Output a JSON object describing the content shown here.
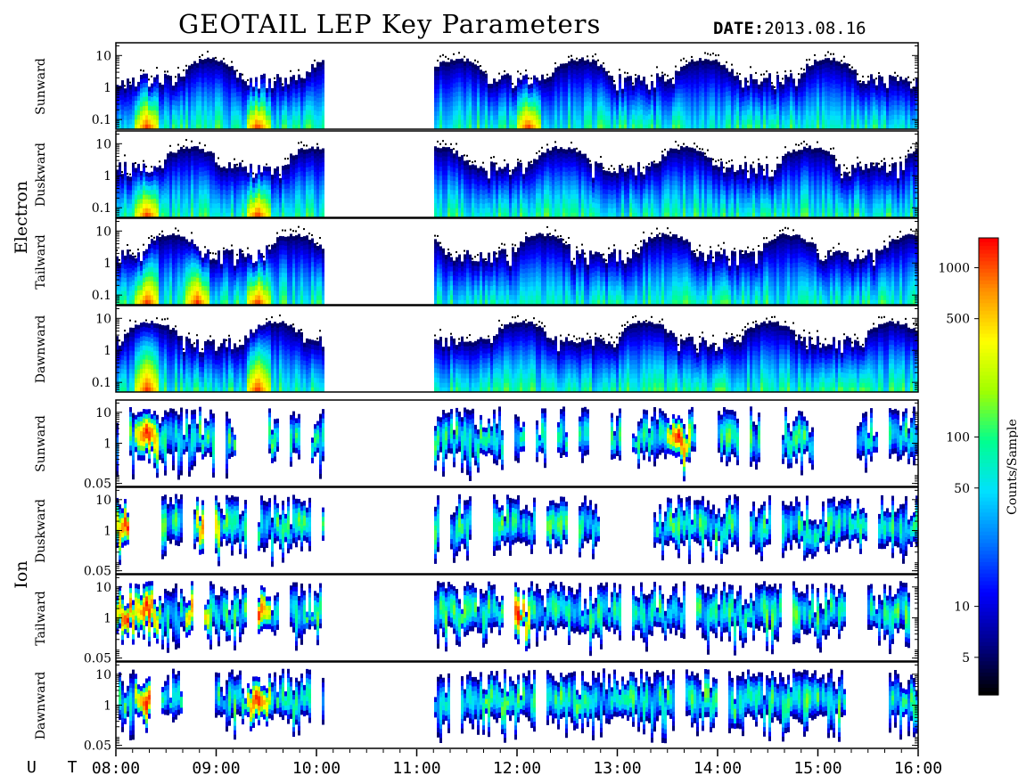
{
  "title": "GEOTAIL LEP Key Parameters",
  "date_label": "DATE:",
  "date_value": "2013.08.16",
  "time_label": "U T",
  "chart_data": {
    "type": "heatmap",
    "title": "GEOTAIL LEP Key Parameters",
    "date": "2013.08.16",
    "xlabel": "U T",
    "x_ticks": [
      "08:00",
      "09:00",
      "10:00",
      "11:00",
      "12:00",
      "13:00",
      "14:00",
      "15:00",
      "16:00"
    ],
    "x_range_hours": [
      8,
      16
    ],
    "data_gaps_hours": [
      [
        10.08,
        11.15
      ]
    ],
    "colorbar": {
      "label": "Counts/Sample",
      "scale": "log",
      "range": [
        3,
        1500
      ],
      "ticks": [
        5,
        10,
        50,
        100,
        500,
        1000
      ],
      "colors": [
        "#000000",
        "#00008b",
        "#0000ff",
        "#0078ff",
        "#00e0ff",
        "#00ff90",
        "#a0ff00",
        "#ffff00",
        "#ff9000",
        "#ff0000"
      ]
    },
    "groups": [
      {
        "name": "Electron",
        "y_scale": "log",
        "y_range": [
          0.05,
          25
        ],
        "y_ticks": [
          "10",
          "1",
          "0.1"
        ],
        "panels": [
          {
            "name": "Sunward",
            "peak_hours": [
              9.4,
              8.3,
              12.1
            ]
          },
          {
            "name": "Duskward",
            "peak_hours": [
              9.4,
              8.3
            ]
          },
          {
            "name": "Tailward",
            "peak_hours": [
              9.4,
              8.3,
              8.8
            ]
          },
          {
            "name": "Dawnward",
            "peak_hours": [
              9.4,
              8.3
            ]
          }
        ]
      },
      {
        "name": "Ion",
        "y_scale": "log",
        "y_range": [
          0.04,
          25
        ],
        "y_ticks": [
          "10",
          "1",
          "0.05"
        ],
        "panels": [
          {
            "name": "Sunward",
            "peak_hours": [
              8.3,
              13.6
            ]
          },
          {
            "name": "Duskward",
            "peak_hours": [
              8.1,
              8.9
            ]
          },
          {
            "name": "Tailward",
            "peak_hours": [
              9.4,
              8.1,
              8.3,
              8.8,
              12.0
            ]
          },
          {
            "name": "Dawnward",
            "peak_hours": [
              9.4,
              8.3
            ]
          }
        ]
      }
    ]
  }
}
